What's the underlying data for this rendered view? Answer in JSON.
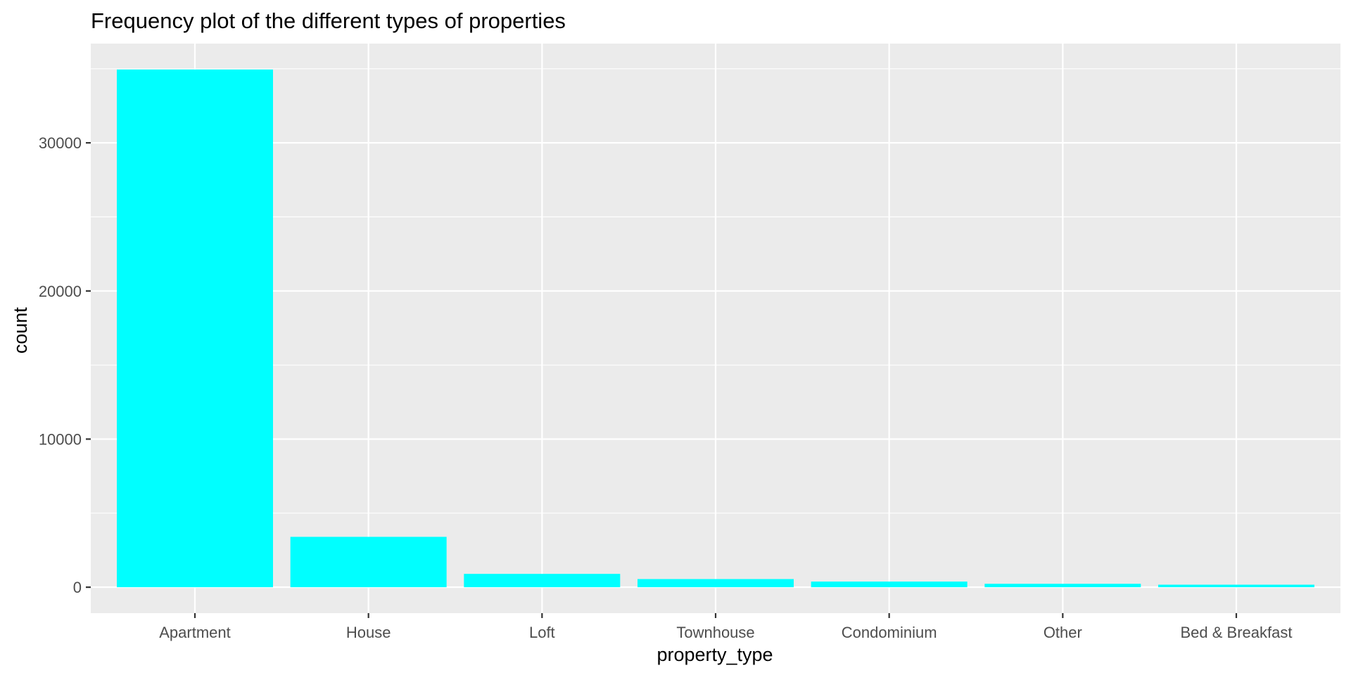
{
  "chart_data": {
    "type": "bar",
    "title": "Frequency plot of the different types of properties",
    "xlabel": "property_type",
    "ylabel": "count",
    "categories": [
      "Apartment",
      "House",
      "Loft",
      "Townhouse",
      "Condominium",
      "Other",
      "Bed & Breakfast"
    ],
    "values": [
      34950,
      3400,
      900,
      550,
      380,
      230,
      170
    ],
    "ylim": [
      -1750,
      36700
    ],
    "yticks": [
      0,
      10000,
      20000,
      30000
    ],
    "ytick_labels": [
      "0",
      "10000",
      "20000",
      "30000"
    ],
    "grid": true,
    "bar_color": "#00FFFF",
    "panel_background": "#EBEBEB",
    "gridline_color": "#FFFFFF",
    "tick_label_color": "#4D4D4D"
  }
}
